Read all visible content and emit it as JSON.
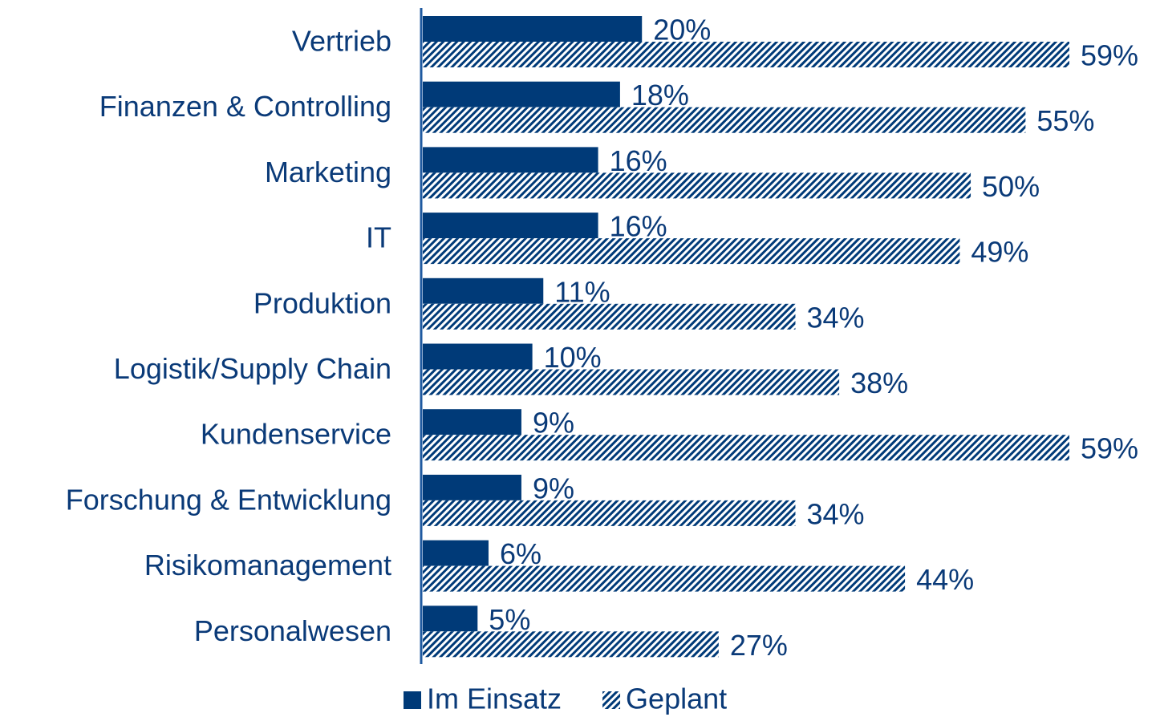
{
  "chart_data": {
    "type": "hbar",
    "categories": [
      "Vertrieb",
      "Finanzen & Controlling",
      "Marketing",
      "IT",
      "Produktion",
      "Logistik/Supply Chain",
      "Kundenservice",
      "Forschung & Entwicklung",
      "Risikomanagement",
      "Personalwesen"
    ],
    "series": [
      {
        "name": "Im Einsatz",
        "color": "#003a78",
        "hatch": false,
        "values": [
          20,
          18,
          16,
          16,
          11,
          10,
          9,
          9,
          6,
          5
        ],
        "value_labels": [
          "20%",
          "18%",
          "16%",
          "16%",
          "11%",
          "10%",
          "9%",
          "9%",
          "6%",
          "5%"
        ]
      },
      {
        "name": "Geplant",
        "color": "#003a78",
        "hatch": true,
        "values": [
          59,
          55,
          50,
          49,
          34,
          38,
          59,
          34,
          44,
          27
        ],
        "value_labels": [
          "59%",
          "55%",
          "50%",
          "49%",
          "34%",
          "38%",
          "59%",
          "34%",
          "44%",
          "27%"
        ]
      }
    ],
    "legend": "bottom"
  }
}
